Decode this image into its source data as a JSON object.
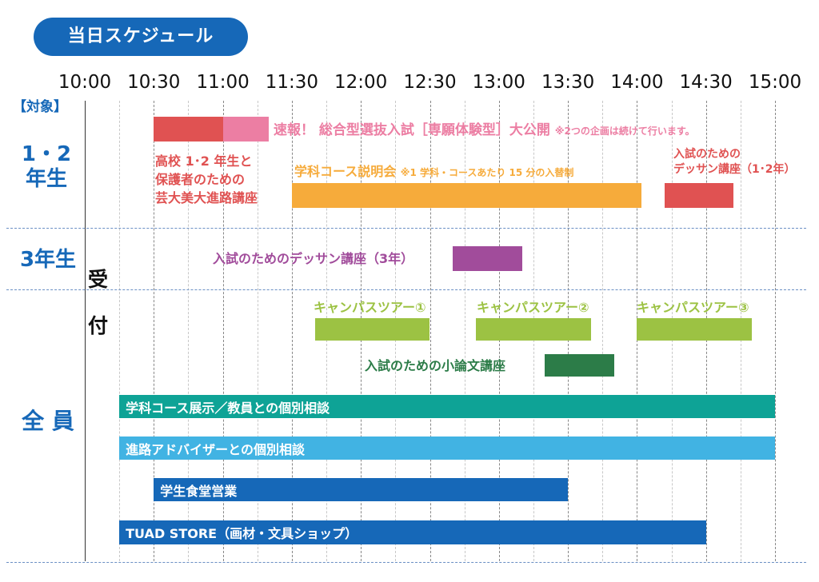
{
  "title": "当日スケジュール",
  "header_target": "【対象】",
  "reception": [
    "受",
    "付"
  ],
  "groups": [
    {
      "id": "g12",
      "label_lines": [
        "1・2",
        "年生"
      ]
    },
    {
      "id": "g3",
      "label_lines": [
        "3年生"
      ]
    },
    {
      "id": "gall",
      "label_lines": [
        "全 員"
      ]
    }
  ],
  "time_axis": {
    "labels": [
      "10:00",
      "10:30",
      "11:00",
      "11:30",
      "12:00",
      "12:30",
      "13:00",
      "13:30",
      "14:00",
      "14:30",
      "15:00"
    ]
  },
  "colors": {
    "title_bg": "#1668b8",
    "group_text": "#1668b8",
    "red": "#e05252",
    "pink": "#ec7ea3",
    "orange": "#f6ab3b",
    "purple": "#a14c9b",
    "light_green": "#9cc243",
    "dark_green": "#2c7c48",
    "teal": "#0ea396",
    "sky": "#41b3e3",
    "navy": "#1668b8"
  },
  "events": [
    {
      "id": "route-lecture-bar",
      "start": "10:30",
      "end": "11:00",
      "color": "#e05252"
    },
    {
      "id": "flash-news-bar",
      "start": "11:00",
      "end": "11:20",
      "color": "#ec7ea3"
    },
    {
      "id": "dept-course-bar",
      "start": "11:30",
      "end": "14:02",
      "color": "#f6ab3b"
    },
    {
      "id": "dessin-12-bar",
      "start": "14:12",
      "end": "14:42",
      "color": "#e05252"
    },
    {
      "id": "dessin-3-bar",
      "start": "12:40",
      "end": "13:10",
      "color": "#a14c9b"
    },
    {
      "id": "tour-1-bar",
      "start": "11:40",
      "end": "12:30",
      "color": "#9cc243"
    },
    {
      "id": "tour-2-bar",
      "start": "12:50",
      "end": "13:40",
      "color": "#9cc243"
    },
    {
      "id": "tour-3-bar",
      "start": "14:00",
      "end": "14:50",
      "color": "#9cc243"
    },
    {
      "id": "essay-lecture-bar",
      "start": "13:20",
      "end": "13:50",
      "color": "#2c7c48"
    },
    {
      "id": "exhibit-consult-bar",
      "start": "10:15",
      "end": "15:00",
      "color": "#0ea396"
    },
    {
      "id": "advisor-consult-bar",
      "start": "10:15",
      "end": "15:00",
      "color": "#41b3e3"
    },
    {
      "id": "cafeteria-bar",
      "start": "10:30",
      "end": "13:30",
      "color": "#1668b8"
    },
    {
      "id": "store-bar",
      "start": "10:15",
      "end": "14:30",
      "color": "#1668b8"
    }
  ],
  "labels": {
    "flash_news": "速報！ 総合型選抜入試［専願体験型］大公開",
    "flash_news_note": "※2つの企画は続けて行います。",
    "route_lecture_lines": [
      "高校 1･2 年生と",
      "保護者のための",
      "芸大美大進路講座"
    ],
    "dept_course": "学科コース説明会",
    "dept_course_note": "※1 学科・コースあたり 15 分の入替制",
    "dessin_12_lines": [
      "入試のための",
      "デッサン講座（1･2年）"
    ],
    "dessin_3": "入試のためのデッサン講座（3年）",
    "tour_1": "キャンパスツアー①",
    "tour_2": "キャンパスツアー②",
    "tour_3": "キャンパスツアー③",
    "essay_lecture": "入試のための小論文講座",
    "exhibit_consult": "学科コース展示／教員との個別相談",
    "advisor_consult": "進路アドバイザーとの個別相談",
    "cafeteria": "学生食堂営業",
    "store": "TUAD STORE（画材・文具ショップ）"
  }
}
